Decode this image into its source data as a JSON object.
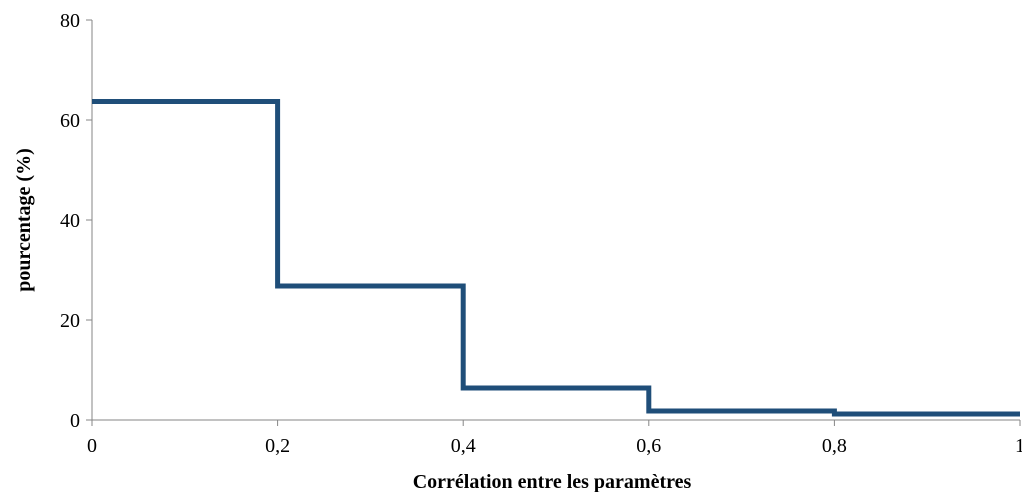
{
  "chart_data": {
    "type": "line",
    "step": true,
    "title": "",
    "xlabel": "Corrélation entre les paramètres",
    "ylabel": "pourcentage (%)",
    "xlim": [
      0,
      1
    ],
    "ylim": [
      0,
      80
    ],
    "x_ticks": [
      0,
      0.2,
      0.4,
      0.6,
      0.8,
      1
    ],
    "x_tick_labels": [
      "0",
      "0,2",
      "0,4",
      "0,6",
      "0,8",
      "1"
    ],
    "y_ticks": [
      0,
      20,
      40,
      60,
      80
    ],
    "y_tick_labels": [
      "0",
      "20",
      "40",
      "60",
      "80"
    ],
    "grid": false,
    "legend": "none",
    "series": [
      {
        "color": "#1f4e79",
        "bins": [
          {
            "x_start": 0,
            "x_end": 0.2,
            "value": 63.7
          },
          {
            "x_start": 0.2,
            "x_end": 0.4,
            "value": 26.8
          },
          {
            "x_start": 0.4,
            "x_end": 0.6,
            "value": 6.4
          },
          {
            "x_start": 0.6,
            "x_end": 0.8,
            "value": 1.8
          },
          {
            "x_start": 0.8,
            "x_end": 1,
            "value": 1.2
          }
        ]
      }
    ]
  }
}
